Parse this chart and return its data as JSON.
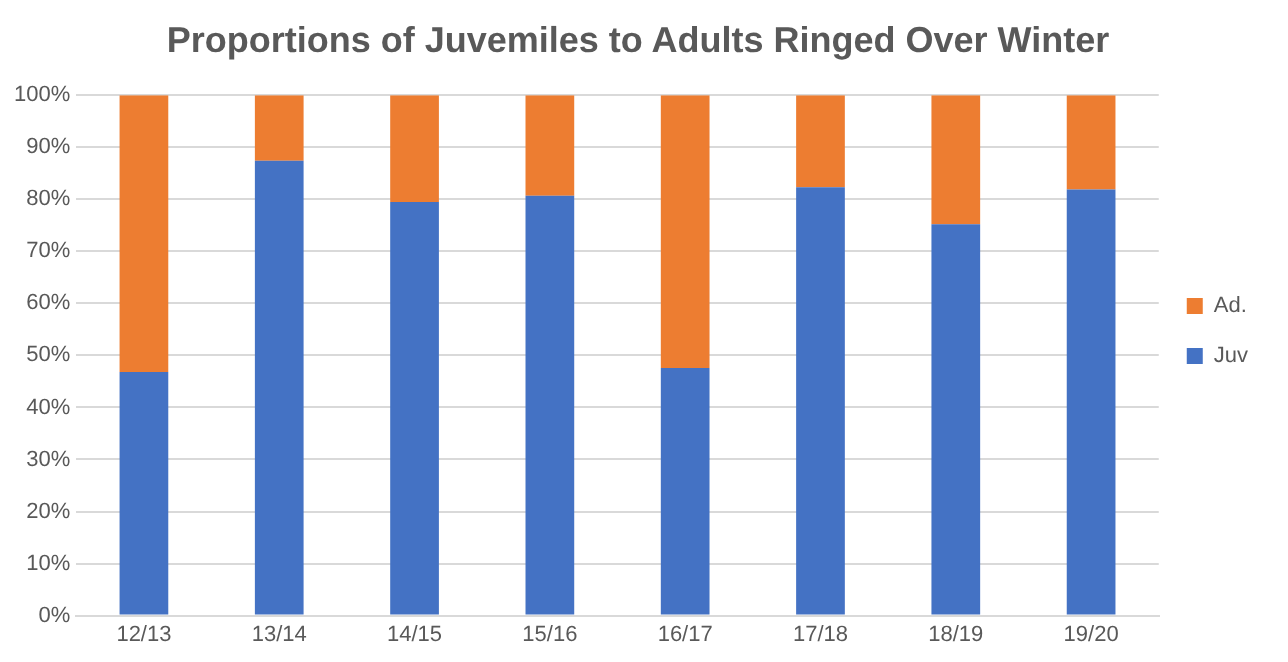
{
  "chart_data": {
    "type": "bar",
    "title": "Proportions of Juvemiles to Adults Ringed Over Winter",
    "categories": [
      "12/13",
      "13/14",
      "14/15",
      "15/16",
      "16/17",
      "17/18",
      "18/19",
      "19/20"
    ],
    "stacked": true,
    "series": [
      {
        "name": "Juv",
        "color": "#4472c4",
        "values": [
          46.8,
          87.4,
          79.5,
          80.7,
          47.6,
          82.3,
          75.2,
          81.9
        ]
      },
      {
        "name": "Ad.",
        "color": "#ed7d31",
        "values": [
          53.2,
          12.6,
          20.5,
          19.3,
          52.4,
          17.7,
          24.8,
          18.1
        ]
      }
    ],
    "ylim": [
      0,
      100
    ],
    "yticks": [
      {
        "value": 0,
        "label": "0%"
      },
      {
        "value": 10,
        "label": "10%"
      },
      {
        "value": 20,
        "label": "20%"
      },
      {
        "value": 30,
        "label": "30%"
      },
      {
        "value": 40,
        "label": "40%"
      },
      {
        "value": 50,
        "label": "50%"
      },
      {
        "value": 60,
        "label": "60%"
      },
      {
        "value": 70,
        "label": "70%"
      },
      {
        "value": 80,
        "label": "80%"
      },
      {
        "value": 90,
        "label": "90%"
      },
      {
        "value": 100,
        "label": "100%"
      }
    ],
    "grid": "y",
    "legend": "right"
  }
}
